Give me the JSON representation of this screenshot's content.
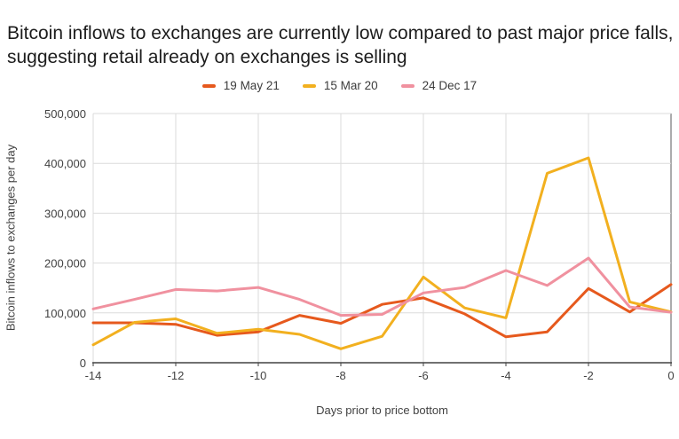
{
  "title": "Bitcoin inflows to exchanges are currently low compared to past major price falls, suggesting retail already on exchanges is selling",
  "chart_data": {
    "type": "line",
    "title": "Bitcoin inflows to exchanges are currently low compared to past major price falls, suggesting retail already on exchanges is selling",
    "xlabel": "Days prior to price bottom",
    "ylabel": "Bitcoin inflows to exchanges per day",
    "x": [
      -14,
      -13,
      -12,
      -11,
      -10,
      -9,
      -8,
      -7,
      -6,
      -5,
      -4,
      -3,
      -2,
      -1,
      0
    ],
    "series": [
      {
        "name": "19 May 21",
        "color": "#E6591D",
        "values": [
          80000,
          80000,
          77000,
          55000,
          62000,
          95000,
          79000,
          117000,
          130000,
          98000,
          52000,
          62000,
          149000,
          102000,
          157000
        ]
      },
      {
        "name": "15 Mar 20",
        "color": "#F2B01F",
        "values": [
          36000,
          81000,
          88000,
          59000,
          67000,
          57000,
          28000,
          53000,
          172000,
          110000,
          90000,
          380000,
          411000,
          122000,
          102000
        ]
      },
      {
        "name": "24 Dec 17",
        "color": "#F0919F",
        "values": [
          108000,
          127000,
          147000,
          144000,
          151000,
          127000,
          95000,
          97000,
          140000,
          151000,
          185000,
          155000,
          210000,
          112000,
          101000
        ]
      }
    ],
    "xlim": [
      -14,
      0
    ],
    "ylim": [
      0,
      500000
    ],
    "x_ticks": [
      -14,
      -12,
      -10,
      -8,
      -6,
      -4,
      -2,
      0
    ],
    "y_ticks": [
      0,
      100000,
      200000,
      300000,
      400000,
      500000
    ],
    "grid": true,
    "legend_position": "top"
  },
  "colors": {
    "gridline": "#dbdbdb",
    "axis_line": "#424242",
    "right_border": "#58595b",
    "tick_text": "#424242",
    "title_text": "#1c1c1c"
  }
}
